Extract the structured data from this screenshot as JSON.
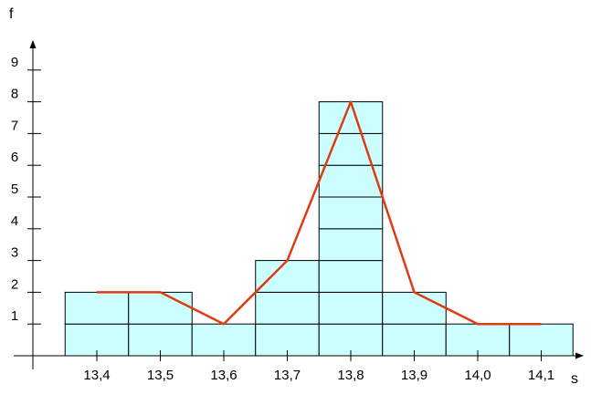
{
  "chart_data": {
    "type": "bar",
    "subtype": "histogram with frequency polygon",
    "xlabel": "s",
    "ylabel": "f",
    "categories": [
      "13,4",
      "13,5",
      "13,6",
      "13,7",
      "13,8",
      "13,9",
      "14,0",
      "14,1"
    ],
    "x_values": [
      13.4,
      13.5,
      13.6,
      13.7,
      13.8,
      13.9,
      14.0,
      14.1
    ],
    "values": [
      2,
      2,
      1,
      3,
      8,
      2,
      1,
      1
    ],
    "series": [
      {
        "type": "bar",
        "values": [
          2,
          2,
          1,
          3,
          8,
          2,
          1,
          1
        ]
      },
      {
        "type": "line",
        "values": [
          2,
          2,
          1,
          3,
          8,
          2,
          1,
          1
        ]
      }
    ],
    "yticks": [
      1,
      2,
      3,
      4,
      5,
      6,
      7,
      8,
      9
    ],
    "ylim": [
      0,
      9.9
    ],
    "grid": false,
    "colors": {
      "bar_fill": "#ccffff",
      "bar_stroke": "#000000",
      "line": "#e03c14",
      "axis": "#000000"
    }
  }
}
